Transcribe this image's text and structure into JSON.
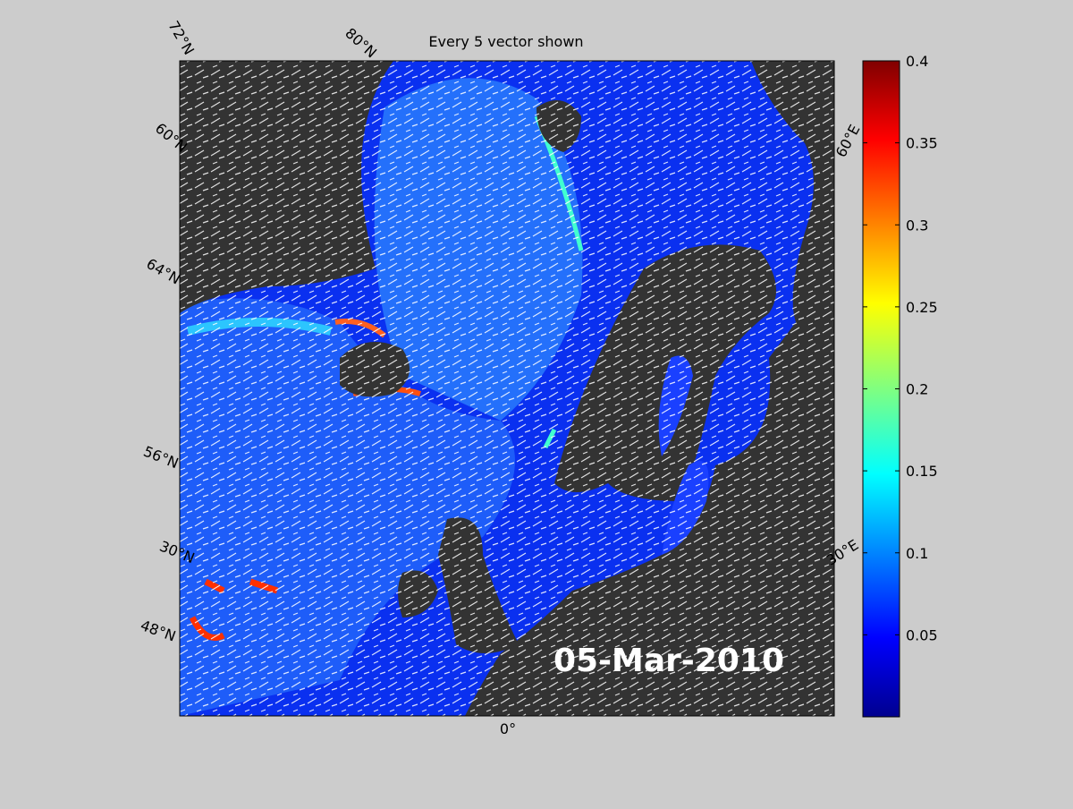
{
  "title": "Every 5 vector shown",
  "date_label": "05-Mar-2010",
  "graticule_labels": [
    "72°N",
    "80°N",
    "60°N",
    "64°N",
    "56°N",
    "30°N",
    "48°N",
    "0°",
    "30°E",
    "60°E"
  ],
  "colorbar": {
    "lim": [
      0,
      0.4
    ],
    "ticks": [
      0.05,
      0.1,
      0.15,
      0.2,
      0.25,
      0.3,
      0.35,
      0.4
    ]
  }
}
